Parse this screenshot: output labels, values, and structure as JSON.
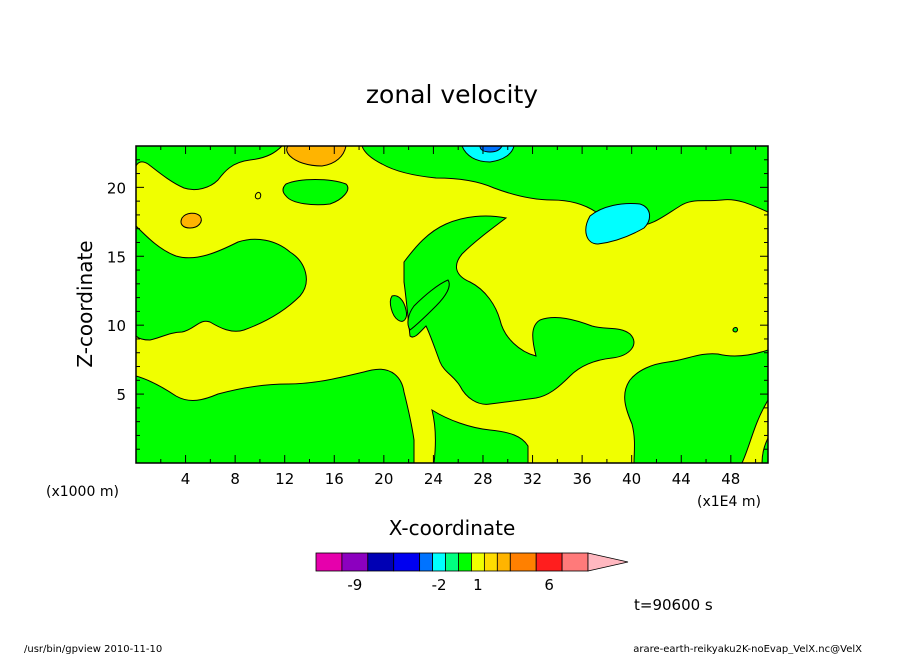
{
  "chart_data": {
    "type": "heatmap",
    "title": "zonal velocity",
    "xlabel": "X-coordinate",
    "ylabel": "Z-coordinate",
    "x_unit_note": "(x1E4 m)",
    "y_unit_note": "(x1000 m)",
    "xlim": [
      0,
      51
    ],
    "ylim": [
      0,
      23
    ],
    "x_ticks": [
      4,
      8,
      12,
      16,
      20,
      24,
      28,
      32,
      36,
      40,
      44,
      48
    ],
    "y_ticks": [
      5,
      10,
      15,
      20
    ],
    "grid": false,
    "colorbar": {
      "labels": [
        {
          "text": "-9",
          "value": -9
        },
        {
          "text": "-2",
          "value": -2
        },
        {
          "text": "1",
          "value": 1
        },
        {
          "text": "6",
          "value": 6
        }
      ],
      "segments": [
        {
          "from": -12,
          "to": -10,
          "color": "#e600ac"
        },
        {
          "from": -10,
          "to": -8,
          "color": "#8c00bf"
        },
        {
          "from": -8,
          "to": -6,
          "color": "#0000b4"
        },
        {
          "from": -6,
          "to": -4,
          "color": "#0000f0"
        },
        {
          "from": -4,
          "to": -3,
          "color": "#0073ff"
        },
        {
          "from": -3,
          "to": -2,
          "color": "#00ffff"
        },
        {
          "from": -2,
          "to": -1,
          "color": "#00ff80"
        },
        {
          "from": -1,
          "to": 0,
          "color": "#00ff00"
        },
        {
          "from": 0,
          "to": 1,
          "color": "#f0ff00"
        },
        {
          "from": 1,
          "to": 2,
          "color": "#ffdc00"
        },
        {
          "from": 2,
          "to": 3,
          "color": "#ffb400"
        },
        {
          "from": 3,
          "to": 5,
          "color": "#ff8000"
        },
        {
          "from": 5,
          "to": 7,
          "color": "#ff1e1e"
        },
        {
          "from": 7,
          "to": 9,
          "color": "#ff7a7a"
        }
      ],
      "overflow_color": "#ffb8c0"
    },
    "regions": [
      {
        "value": "yellow",
        "color": "#f0ff00",
        "description": "background positive"
      },
      {
        "value": "green",
        "color": "#00ff00",
        "description": "weak negative"
      }
    ],
    "annotation": "t=90600 s"
  },
  "footer": {
    "left": "/usr/bin/gpview   2010-11-10",
    "right": "arare-earth-reikyaku2K-noEvap_VelX.nc@VelX"
  }
}
